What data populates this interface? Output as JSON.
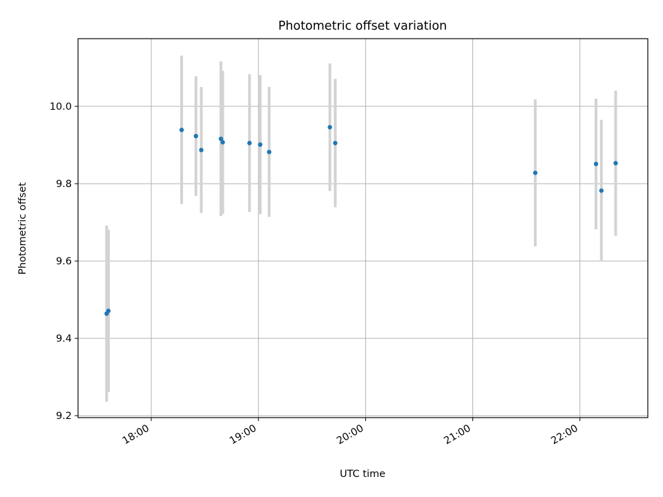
{
  "chart_data": {
    "type": "scatter",
    "title": "Photometric offset variation",
    "xlabel": "UTC time",
    "ylabel": "Photometric offset",
    "x_axis": {
      "kind": "time",
      "ticks": [
        "18:00",
        "19:00",
        "20:00",
        "21:00",
        "22:00"
      ],
      "range": [
        "17:19",
        "22:38"
      ]
    },
    "y_axis": {
      "ticks": [
        "9.2",
        "9.4",
        "9.6",
        "9.8",
        "10.0"
      ],
      "range": [
        9.195,
        10.175
      ]
    },
    "grid": true,
    "legend": "none",
    "colors": {
      "point": "#1f77b4",
      "errorbar": "#d3d3d3",
      "grid": "#b0b0b0",
      "axis": "#000000"
    },
    "points": [
      {
        "x": "17:35",
        "y": 9.464,
        "yerr": 0.228
      },
      {
        "x": "17:36",
        "y": 9.471,
        "yerr": 0.21
      },
      {
        "x": "18:17",
        "y": 9.939,
        "yerr": 0.192
      },
      {
        "x": "18:25",
        "y": 9.923,
        "yerr": 0.155
      },
      {
        "x": "18:28",
        "y": 9.887,
        "yerr": 0.163
      },
      {
        "x": "18:39",
        "y": 9.916,
        "yerr": 0.2
      },
      {
        "x": "18:40",
        "y": 9.907,
        "yerr": 0.185
      },
      {
        "x": "18:55",
        "y": 9.905,
        "yerr": 0.178
      },
      {
        "x": "19:01",
        "y": 9.901,
        "yerr": 0.18
      },
      {
        "x": "19:06",
        "y": 9.882,
        "yerr": 0.168
      },
      {
        "x": "19:40",
        "y": 9.946,
        "yerr": 0.165
      },
      {
        "x": "19:43",
        "y": 9.905,
        "yerr": 0.166
      },
      {
        "x": "21:35",
        "y": 9.828,
        "yerr": 0.19
      },
      {
        "x": "22:09",
        "y": 9.851,
        "yerr": 0.169
      },
      {
        "x": "22:12",
        "y": 9.782,
        "yerr": 0.183
      },
      {
        "x": "22:20",
        "y": 9.853,
        "yerr": 0.188
      }
    ]
  }
}
